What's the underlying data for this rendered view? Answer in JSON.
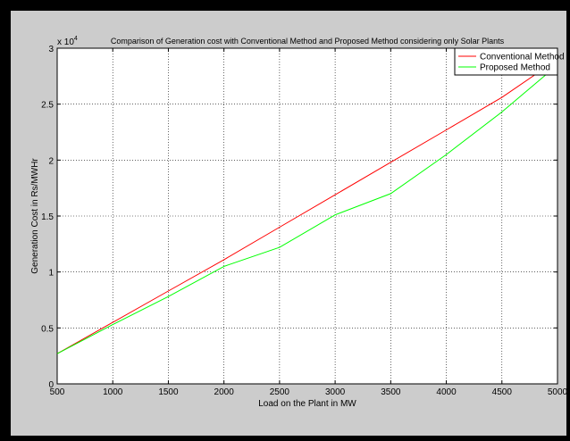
{
  "chart_data": {
    "type": "line",
    "title": "Comparison of Generation cost with Conventional Method and Proposed Method considering only Solar Plants",
    "xlabel": "Load on the Plant in MW",
    "ylabel": "Generation Cost in Rs/MWHr",
    "y_multiplier": "x 10",
    "y_multiplier_exp": "4",
    "xlim": [
      500,
      5000
    ],
    "ylim": [
      0,
      3
    ],
    "x_ticks": [
      "500",
      "1000",
      "1500",
      "2000",
      "2500",
      "3000",
      "3500",
      "4000",
      "4500",
      "5000"
    ],
    "y_ticks": [
      "0",
      "0.5",
      "1",
      "1.5",
      "2",
      "2.5",
      "3"
    ],
    "grid": true,
    "legend_position": "top-right",
    "x": [
      500,
      1000,
      1500,
      2000,
      2500,
      3000,
      3500,
      4000,
      4500,
      5000
    ],
    "series": [
      {
        "name": "Conventional Method",
        "color": "#ff0000",
        "values": [
          0.27,
          0.55,
          0.83,
          1.11,
          1.4,
          1.69,
          1.98,
          2.27,
          2.56,
          2.9
        ]
      },
      {
        "name": "Proposed Method",
        "color": "#00ff00",
        "values": [
          0.27,
          0.53,
          0.78,
          1.05,
          1.22,
          1.51,
          1.7,
          2.05,
          2.43,
          2.85
        ]
      }
    ]
  }
}
